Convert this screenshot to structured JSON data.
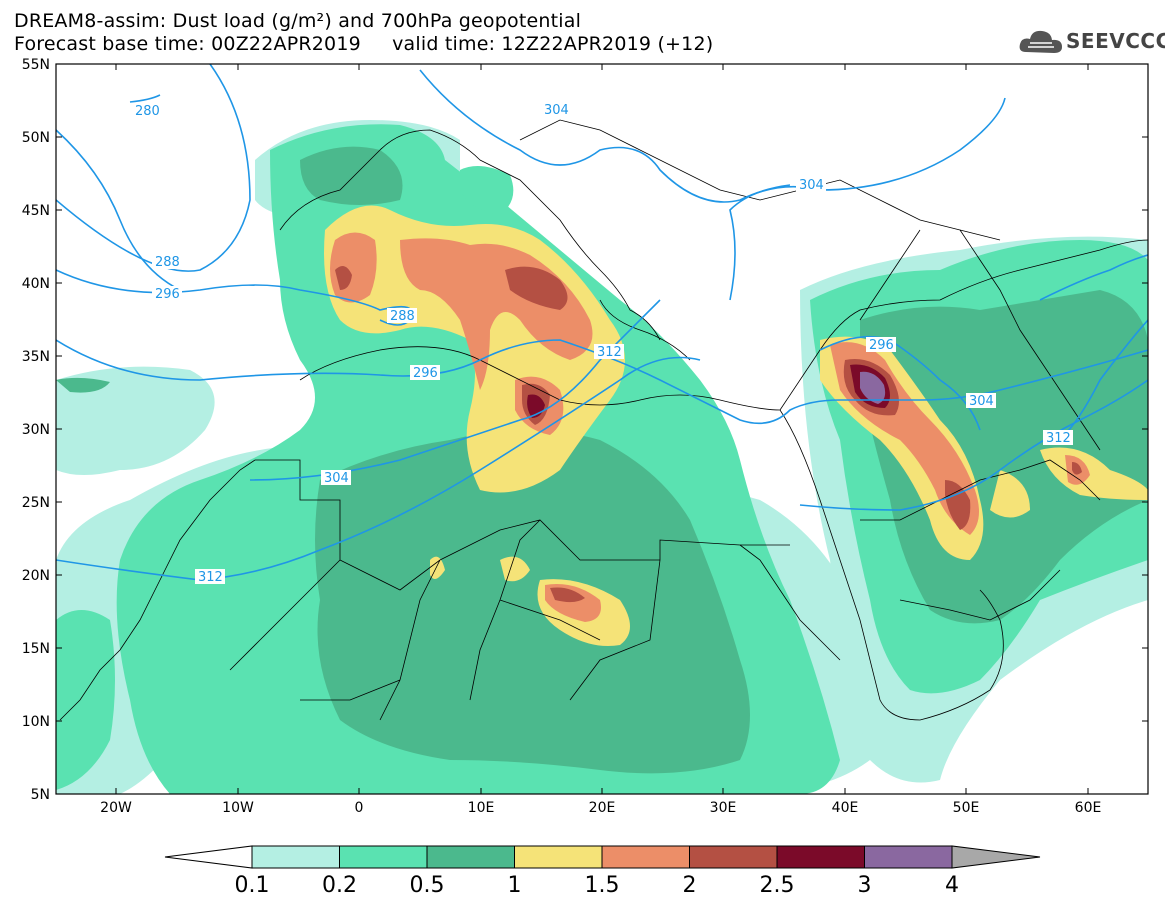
{
  "header": {
    "line1": "DREAM8-assim: Dust load (g/m²) and 700hPa geopotential",
    "line2": "Forecast base time: 00Z22APR2019     valid time: 12Z22APR2019 (+12)"
  },
  "logo": {
    "text": "SEEVCCC",
    "icon": "cloud-icon"
  },
  "axes": {
    "lat_labels": [
      "55N",
      "50N",
      "45N",
      "40N",
      "35N",
      "30N",
      "25N",
      "20N",
      "15N",
      "10N",
      "5N"
    ],
    "lon_labels": [
      "20W",
      "10W",
      "0",
      "10E",
      "20E",
      "30E",
      "40E",
      "50E",
      "60E"
    ]
  },
  "contour_labels": [
    {
      "id": "c280a",
      "text": "280"
    },
    {
      "id": "c304a",
      "text": "304"
    },
    {
      "id": "c304b",
      "text": "304"
    },
    {
      "id": "c288a",
      "text": "288"
    },
    {
      "id": "c296a",
      "text": "296"
    },
    {
      "id": "c288b",
      "text": "288"
    },
    {
      "id": "c296b",
      "text": "296"
    },
    {
      "id": "c312a",
      "text": "312"
    },
    {
      "id": "c296c",
      "text": "296"
    },
    {
      "id": "c304c",
      "text": "304"
    },
    {
      "id": "c312b",
      "text": "312"
    },
    {
      "id": "c304d",
      "text": "304"
    },
    {
      "id": "c312c",
      "text": "312"
    }
  ],
  "colorbar": {
    "labels": [
      "0.1",
      "0.2",
      "0.5",
      "1",
      "1.5",
      "2",
      "2.5",
      "3",
      "4"
    ],
    "colors": [
      "#ffffff",
      "#b4efe3",
      "#5ae2b1",
      "#4bb98d",
      "#f5e378",
      "#ec8e68",
      "#b45043",
      "#7b0a29",
      "#8a68a0",
      "#a8a8a8"
    ]
  },
  "colors": {
    "contour_line": "#1f96e6",
    "contour_label": "#1f96e6"
  }
}
